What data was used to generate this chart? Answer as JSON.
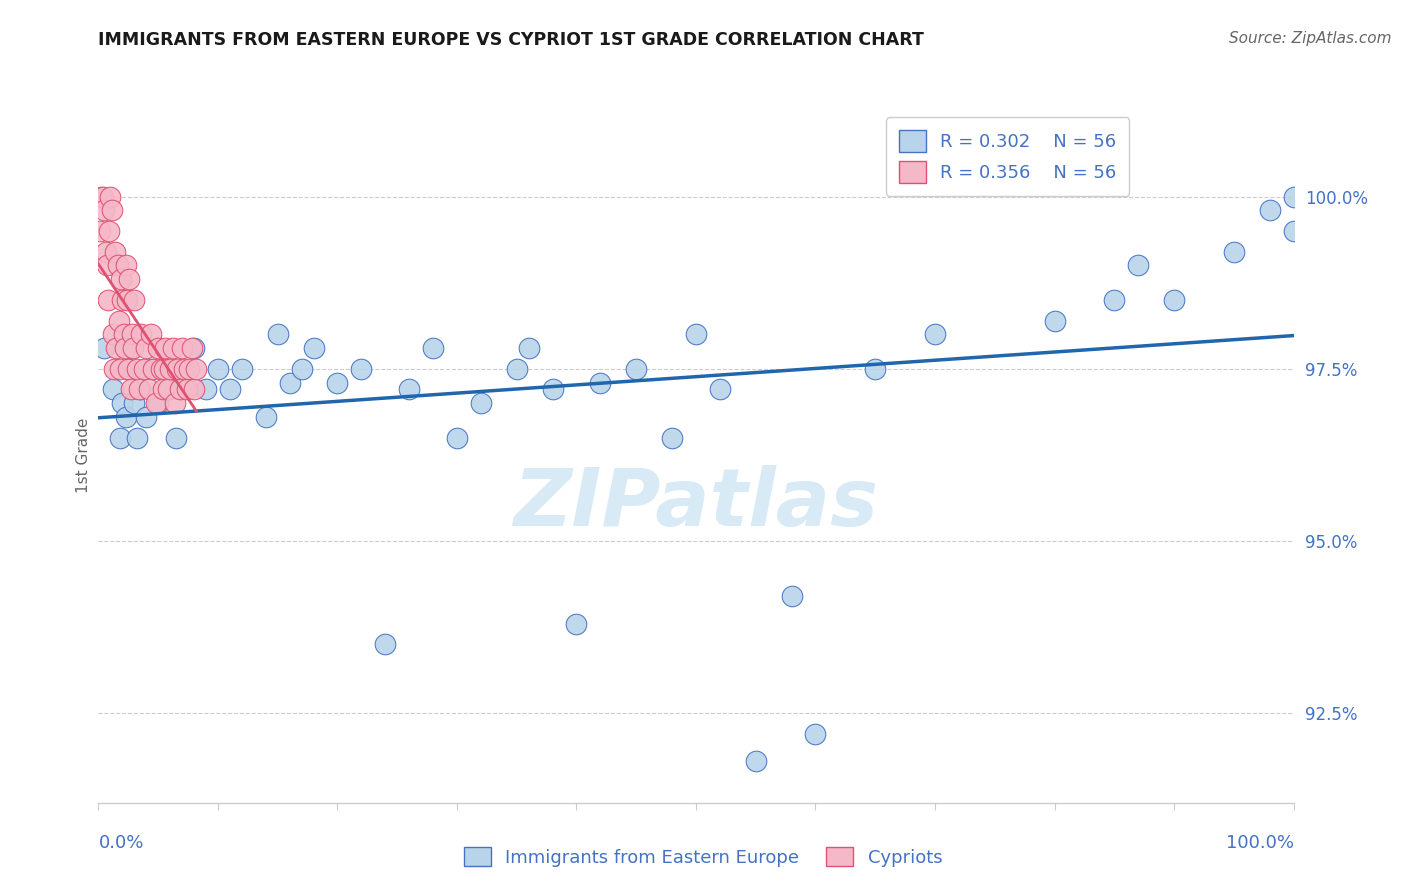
{
  "title": "IMMIGRANTS FROM EASTERN EUROPE VS CYPRIOT 1ST GRADE CORRELATION CHART",
  "source": "Source: ZipAtlas.com",
  "ylabel": "1st Grade",
  "y_ticks": [
    92.5,
    95.0,
    97.5,
    100.0
  ],
  "x_range": [
    0.0,
    100.0
  ],
  "y_range": [
    91.2,
    101.3
  ],
  "legend_blue_r": "R = 0.302",
  "legend_blue_n": "N = 56",
  "legend_pink_r": "R = 0.356",
  "legend_pink_n": "N = 56",
  "blue_color": "#b8d4ea",
  "blue_edge_color": "#4472c4",
  "blue_line_color": "#2166ac",
  "pink_color": "#f5b8c8",
  "pink_edge_color": "#e05070",
  "pink_line_color": "#e05070",
  "tick_label_color": "#4472c4",
  "title_color": "#1a1a1a",
  "source_color": "#666666",
  "grid_color": "#cccccc",
  "blue_scatter_x": [
    0.5,
    1.2,
    1.8,
    2.0,
    2.3,
    2.5,
    2.8,
    3.0,
    3.2,
    3.5,
    4.0,
    4.5,
    5.0,
    5.5,
    6.0,
    6.5,
    7.0,
    8.0,
    9.0,
    10.0,
    11.0,
    12.0,
    14.0,
    15.0,
    16.0,
    17.0,
    18.0,
    20.0,
    22.0,
    24.0,
    26.0,
    28.0,
    30.0,
    32.0,
    35.0,
    36.0,
    38.0,
    40.0,
    42.0,
    45.0,
    48.0,
    50.0,
    52.0,
    55.0,
    58.0,
    60.0,
    65.0,
    70.0,
    80.0,
    85.0,
    87.0,
    90.0,
    95.0,
    98.0,
    100.0,
    100.0
  ],
  "blue_scatter_y": [
    97.8,
    97.2,
    96.5,
    97.0,
    96.8,
    97.5,
    97.8,
    97.0,
    96.5,
    97.2,
    96.8,
    97.5,
    97.0,
    97.5,
    97.2,
    96.5,
    97.3,
    97.8,
    97.2,
    97.5,
    97.2,
    97.5,
    96.8,
    98.0,
    97.3,
    97.5,
    97.8,
    97.3,
    97.5,
    93.5,
    97.2,
    97.8,
    96.5,
    97.0,
    97.5,
    97.8,
    97.2,
    93.8,
    97.3,
    97.5,
    96.5,
    98.0,
    97.2,
    91.8,
    94.2,
    92.2,
    97.5,
    98.0,
    98.2,
    98.5,
    99.0,
    98.5,
    99.2,
    99.8,
    100.0,
    99.5
  ],
  "pink_scatter_x": [
    0.15,
    0.25,
    0.35,
    0.5,
    0.6,
    0.7,
    0.8,
    0.9,
    1.0,
    1.1,
    1.2,
    1.3,
    1.4,
    1.5,
    1.6,
    1.7,
    1.8,
    1.9,
    2.0,
    2.1,
    2.2,
    2.3,
    2.4,
    2.5,
    2.6,
    2.7,
    2.8,
    2.9,
    3.0,
    3.2,
    3.4,
    3.6,
    3.8,
    4.0,
    4.2,
    4.4,
    4.6,
    4.8,
    5.0,
    5.2,
    5.4,
    5.5,
    5.6,
    5.8,
    6.0,
    6.2,
    6.4,
    6.6,
    6.8,
    7.0,
    7.2,
    7.4,
    7.6,
    7.8,
    8.0,
    8.2
  ],
  "pink_scatter_y": [
    99.5,
    100.0,
    100.0,
    99.8,
    99.2,
    99.0,
    98.5,
    99.5,
    100.0,
    99.8,
    98.0,
    97.5,
    99.2,
    97.8,
    99.0,
    98.2,
    97.5,
    98.8,
    98.5,
    98.0,
    97.8,
    99.0,
    98.5,
    97.5,
    98.8,
    97.2,
    98.0,
    97.8,
    98.5,
    97.5,
    97.2,
    98.0,
    97.5,
    97.8,
    97.2,
    98.0,
    97.5,
    97.0,
    97.8,
    97.5,
    97.2,
    97.5,
    97.8,
    97.2,
    97.5,
    97.8,
    97.0,
    97.5,
    97.2,
    97.8,
    97.5,
    97.2,
    97.5,
    97.8,
    97.2,
    97.5
  ]
}
